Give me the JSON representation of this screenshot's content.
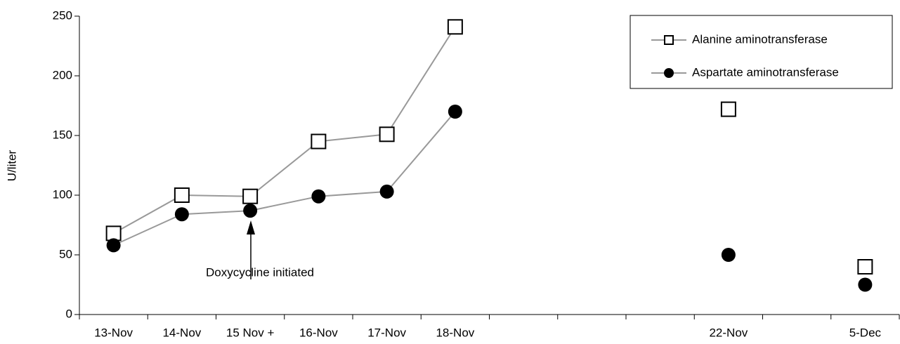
{
  "chart_data": {
    "type": "line",
    "y_label": "U/liter",
    "categories": [
      "13-Nov",
      "14-Nov",
      "15 Nov +",
      "16-Nov",
      "17-Nov",
      "18-Nov",
      null,
      null,
      null,
      "22-Nov",
      null,
      "5-Dec"
    ],
    "series": [
      {
        "name": "Alanine aminotransferase",
        "color": "#999999",
        "marker": "square",
        "values": [
          68,
          100,
          99,
          145,
          151,
          241,
          null,
          null,
          null,
          172,
          null,
          40
        ]
      },
      {
        "name": "Aspartate aminotransferase",
        "color": "#999999",
        "marker": "circle",
        "values": [
          58,
          84,
          87,
          99,
          103,
          170,
          null,
          null,
          null,
          50,
          null,
          25
        ]
      }
    ],
    "ylim": [
      0,
      250
    ],
    "yticks": [
      0,
      50,
      100,
      150,
      200,
      250
    ],
    "annotation": "Doxycycline initiated",
    "legend": "upper right"
  }
}
